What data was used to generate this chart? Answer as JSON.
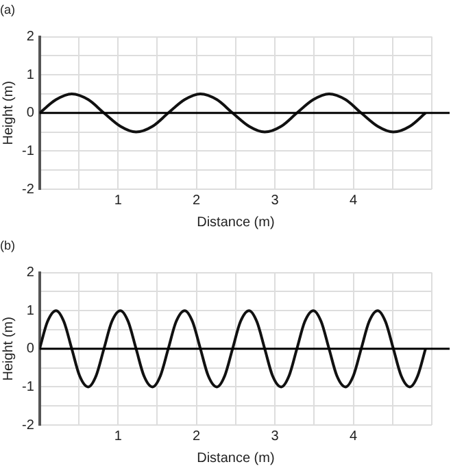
{
  "chart_data": [
    {
      "type": "line",
      "title": "(a)",
      "xlabel": "Distance (m)",
      "ylabel": "Height (m)",
      "x": [
        0,
        0.21,
        0.41,
        0.62,
        0.82,
        1.03,
        1.23,
        1.44,
        1.64,
        1.85,
        2.05,
        2.26,
        2.46,
        2.67,
        2.87,
        3.08,
        3.28,
        3.49,
        3.69,
        3.9,
        4.1,
        4.31,
        4.51,
        4.72,
        4.92
      ],
      "series": [
        {
          "color": "#111111",
          "values": [
            0,
            0.35,
            0.5,
            0.35,
            0,
            -0.35,
            -0.5,
            -0.35,
            0,
            0.35,
            0.5,
            0.35,
            0,
            -0.35,
            -0.5,
            -0.35,
            0,
            0.35,
            0.5,
            0.35,
            0,
            -0.35,
            -0.5,
            -0.35,
            0
          ]
        }
      ],
      "xlim": [
        0,
        5
      ],
      "xticks": [
        {
          "value": 0,
          "label": null
        },
        {
          "value": 0.5,
          "label": null
        },
        1,
        {
          "value": 1.5,
          "label": null
        },
        2,
        {
          "value": 2.5,
          "label": null
        },
        3,
        {
          "value": 3.5,
          "label": null
        },
        4,
        {
          "value": 4.5,
          "label": null
        },
        {
          "value": 5,
          "label": null
        }
      ],
      "ylim": [
        -2,
        2
      ],
      "yticks": [
        -2,
        {
          "value": -1.5,
          "label": null
        },
        -1,
        {
          "value": -0.5,
          "label": null
        },
        0,
        {
          "value": 0.5,
          "label": null
        },
        1,
        {
          "value": 1.5,
          "label": null
        },
        2
      ],
      "ref_lines": [
        {
          "axis": "y",
          "value": 0,
          "color": "#000000"
        }
      ],
      "grid": true,
      "legend": false,
      "marker": "none",
      "line_style": "solid"
    },
    {
      "type": "line",
      "title": "(b)",
      "xlabel": "Distance (m)",
      "ylabel": "Height (m)",
      "x": [
        0,
        0.1,
        0.21,
        0.31,
        0.41,
        0.51,
        0.62,
        0.72,
        0.82,
        0.92,
        1.03,
        1.13,
        1.23,
        1.33,
        1.44,
        1.54,
        1.64,
        1.74,
        1.85,
        1.95,
        2.05,
        2.15,
        2.26,
        2.36,
        2.46,
        2.56,
        2.67,
        2.77,
        2.87,
        2.97,
        3.08,
        3.18,
        3.28,
        3.38,
        3.49,
        3.59,
        3.69,
        3.79,
        3.9,
        4.0,
        4.1,
        4.2,
        4.31,
        4.41,
        4.51,
        4.61,
        4.72,
        4.82,
        4.92
      ],
      "series": [
        {
          "color": "#111111",
          "values": [
            0,
            0.71,
            1,
            0.71,
            0,
            -0.71,
            -1,
            -0.71,
            0,
            0.71,
            1,
            0.71,
            0,
            -0.71,
            -1,
            -0.71,
            0,
            0.71,
            1,
            0.71,
            0,
            -0.71,
            -1,
            -0.71,
            0,
            0.71,
            1,
            0.71,
            0,
            -0.71,
            -1,
            -0.71,
            0,
            0.71,
            1,
            0.71,
            0,
            -0.71,
            -1,
            -0.71,
            0,
            0.71,
            1,
            0.71,
            0,
            -0.71,
            -1,
            -0.71,
            0
          ]
        }
      ],
      "xlim": [
        0,
        5
      ],
      "xticks": [
        {
          "value": 0,
          "label": null
        },
        {
          "value": 0.5,
          "label": null
        },
        1,
        {
          "value": 1.5,
          "label": null
        },
        2,
        {
          "value": 2.5,
          "label": null
        },
        3,
        {
          "value": 3.5,
          "label": null
        },
        4,
        {
          "value": 4.5,
          "label": null
        },
        {
          "value": 5,
          "label": null
        }
      ],
      "ylim": [
        -2,
        2
      ],
      "yticks": [
        -2,
        {
          "value": -1.5,
          "label": null
        },
        -1,
        {
          "value": -0.5,
          "label": null
        },
        0,
        {
          "value": 0.5,
          "label": null
        },
        1,
        {
          "value": 1.5,
          "label": null
        },
        2
      ],
      "ref_lines": [
        {
          "axis": "y",
          "value": 0,
          "color": "#000000"
        }
      ],
      "grid": true,
      "legend": false,
      "marker": "none",
      "line_style": "solid"
    }
  ]
}
